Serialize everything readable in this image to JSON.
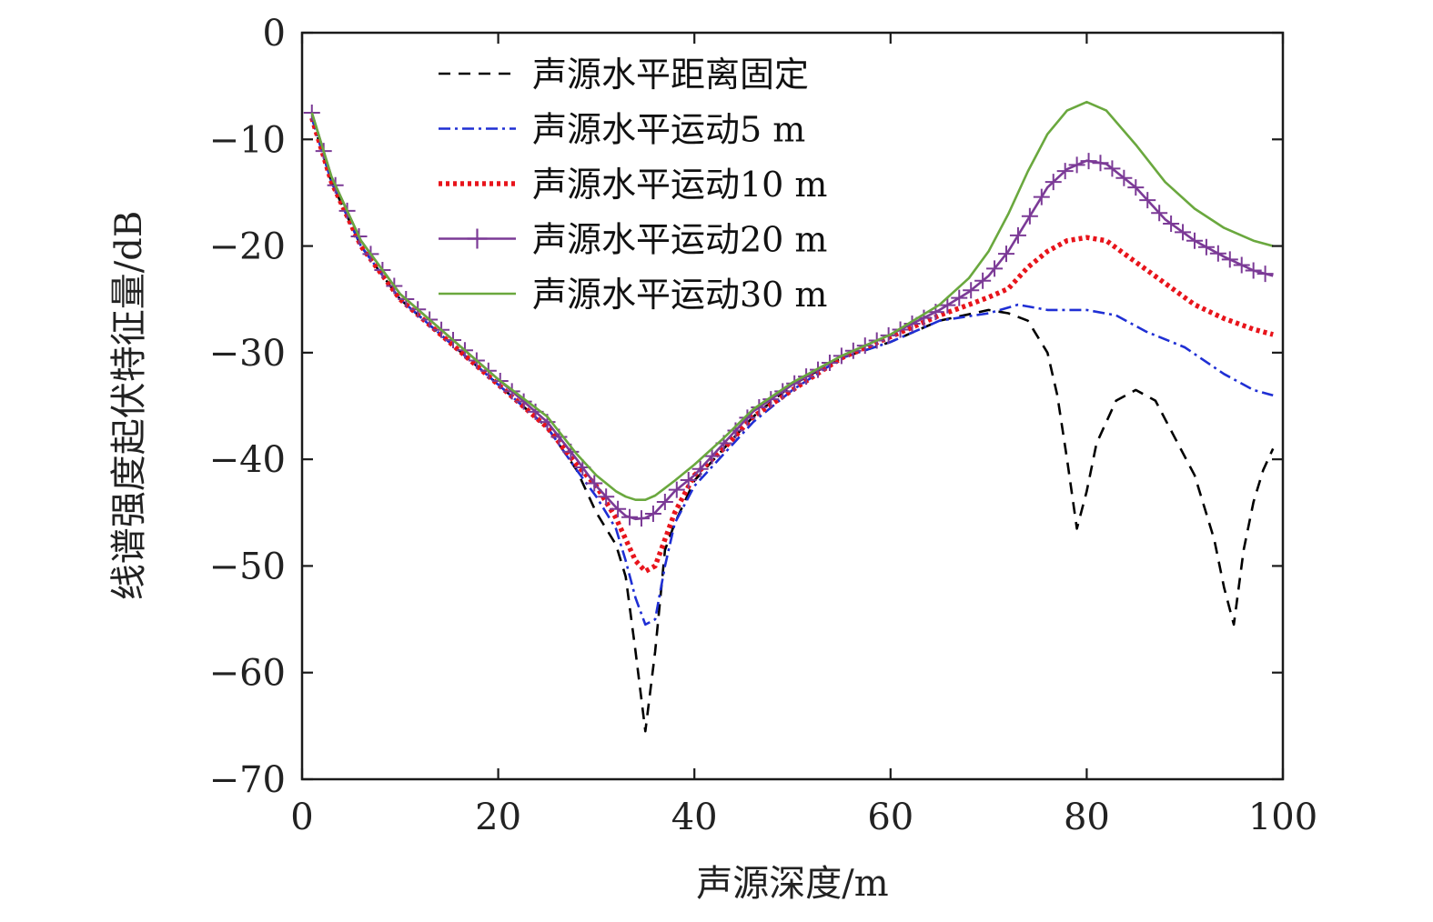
{
  "chart_data": {
    "type": "line",
    "title": "",
    "xlabel": "声源深度/m",
    "ylabel": "线谱强度起伏特征量/dB",
    "xlim": [
      0,
      100
    ],
    "ylim": [
      -70,
      0
    ],
    "x_ticks": [
      0,
      20,
      40,
      60,
      80,
      100
    ],
    "y_ticks": [
      0,
      -10,
      -20,
      -30,
      -40,
      -50,
      -60,
      -70
    ],
    "grid": false,
    "legend_position": "top-left",
    "series": [
      {
        "name": "声源水平距离固定",
        "color": "#000000",
        "style": "dashed",
        "x": [
          1,
          3,
          6,
          10,
          15,
          20,
          25,
          28,
          30,
          32,
          33,
          34,
          35,
          36,
          37,
          38,
          40,
          43,
          46,
          50,
          55,
          60,
          65,
          70,
          72,
          74,
          76,
          77,
          78,
          79,
          80,
          81,
          83,
          85,
          87,
          89,
          91,
          93,
          94,
          95,
          96,
          97,
          98,
          99
        ],
        "y": [
          -8,
          -14,
          -20,
          -25,
          -29,
          -33,
          -37,
          -41,
          -45,
          -48,
          -51,
          -58,
          -65.5,
          -58,
          -48.5,
          -46,
          -42,
          -39,
          -36,
          -33,
          -30.5,
          -29,
          -27,
          -26,
          -26.3,
          -27,
          -30,
          -34,
          -40,
          -46.5,
          -43,
          -38.5,
          -34.5,
          -33.5,
          -34.5,
          -38,
          -41.5,
          -47.5,
          -52,
          -55.5,
          -48.5,
          -44,
          -41,
          -39
        ]
      },
      {
        "name": "声源水平运动5 m",
        "color": "#1f2fd4",
        "style": "dashdot",
        "x": [
          1,
          3,
          6,
          10,
          15,
          20,
          25,
          28,
          30,
          32,
          33,
          34,
          35,
          36,
          37,
          38,
          40,
          43,
          46,
          50,
          55,
          60,
          65,
          70,
          73,
          76,
          80,
          83,
          86,
          90,
          94,
          97,
          99
        ],
        "y": [
          -8,
          -14,
          -20,
          -25,
          -29,
          -33,
          -37,
          -41,
          -43.5,
          -46.5,
          -49.5,
          -53,
          -55.5,
          -55,
          -50,
          -46,
          -42.5,
          -39.5,
          -36.5,
          -33.5,
          -30.5,
          -29,
          -27,
          -26.3,
          -25.5,
          -26,
          -26,
          -26.5,
          -28,
          -29.5,
          -32,
          -33.5,
          -34
        ]
      },
      {
        "name": "声源水平运动10 m",
        "color": "#e8141b",
        "style": "dotted",
        "x": [
          1,
          3,
          6,
          10,
          15,
          20,
          25,
          28,
          30,
          32,
          33,
          34,
          35,
          36,
          37,
          38,
          40,
          43,
          46,
          50,
          55,
          60,
          65,
          68,
          70,
          72,
          74,
          76,
          78,
          80,
          82,
          85,
          88,
          91,
          94,
          97,
          99
        ],
        "y": [
          -8,
          -14,
          -20,
          -25,
          -29,
          -33,
          -37,
          -40.5,
          -42.5,
          -45.5,
          -47.5,
          -49.5,
          -50.5,
          -50,
          -47.5,
          -45,
          -41.5,
          -39,
          -36,
          -33.5,
          -30.5,
          -28.5,
          -26.5,
          -25.5,
          -24.8,
          -24,
          -22,
          -20.5,
          -19.5,
          -19.2,
          -19.5,
          -21.5,
          -23.5,
          -25.5,
          -26.8,
          -27.8,
          -28.3
        ]
      },
      {
        "name": "声源水平运动20 m",
        "color": "#7b3a96",
        "style": "solid-plus",
        "x": [
          1,
          3,
          6,
          10,
          15,
          20,
          25,
          28,
          30,
          32,
          33,
          34,
          35,
          36,
          37,
          38,
          40,
          43,
          46,
          50,
          55,
          60,
          65,
          68,
          70,
          72,
          74,
          76,
          78,
          80,
          82,
          85,
          88,
          91,
          94,
          97,
          99
        ],
        "y": [
          -7.5,
          -13.5,
          -19.5,
          -24.5,
          -28.5,
          -32.5,
          -36.5,
          -40,
          -42.5,
          -44.5,
          -45.3,
          -45.6,
          -45.5,
          -45,
          -44,
          -43,
          -41.5,
          -38.5,
          -35.5,
          -33,
          -30.3,
          -28.3,
          -26,
          -24.3,
          -22.8,
          -20.5,
          -17.5,
          -14.5,
          -12.8,
          -12,
          -12.3,
          -14.5,
          -17.5,
          -19.5,
          -21,
          -22.3,
          -22.8
        ]
      },
      {
        "name": "声源水平运动30 m",
        "color": "#6aa83e",
        "style": "solid",
        "x": [
          1,
          3,
          6,
          10,
          15,
          20,
          25,
          28,
          30,
          32,
          33,
          34,
          35,
          36,
          37,
          38,
          40,
          43,
          46,
          50,
          55,
          60,
          65,
          68,
          70,
          72,
          74,
          76,
          78,
          80,
          82,
          85,
          88,
          91,
          94,
          97,
          99
        ],
        "y": [
          -7.5,
          -13.5,
          -19.5,
          -24.5,
          -28.5,
          -32.5,
          -36,
          -39.5,
          -41.5,
          -43,
          -43.5,
          -43.8,
          -43.8,
          -43.4,
          -42.7,
          -42,
          -40.5,
          -38,
          -35.3,
          -32.8,
          -30.3,
          -28.3,
          -25.5,
          -23,
          -20.5,
          -17,
          -13,
          -9.5,
          -7.3,
          -6.5,
          -7.3,
          -10.5,
          -14,
          -16.5,
          -18.3,
          -19.5,
          -20
        ]
      }
    ]
  }
}
